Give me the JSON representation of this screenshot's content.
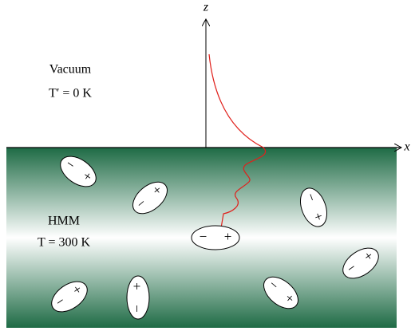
{
  "axes": {
    "z": "z",
    "x": "x"
  },
  "vacuum": {
    "label": "Vacuum",
    "temperature": "T′ = 0 K"
  },
  "hmm": {
    "label": "HMM",
    "temperature": "T = 300 K"
  },
  "dipoles": [
    {
      "minus": "−",
      "plus": "+"
    },
    {
      "minus": "−",
      "plus": "+"
    },
    {
      "minus": "−",
      "plus": "+"
    },
    {
      "minus": "−",
      "plus": "+"
    },
    {
      "minus": "−",
      "plus": "+"
    },
    {
      "minus": "−",
      "plus": "+"
    },
    {
      "minus": "−",
      "plus": "+"
    },
    {
      "minus": "−",
      "plus": "+"
    }
  ]
}
